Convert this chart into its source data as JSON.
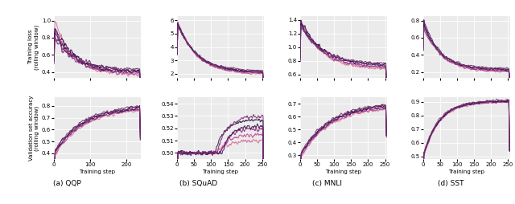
{
  "colors": [
    "#d4779a",
    "#c4509a",
    "#8b3080",
    "#4a1a5a",
    "#3d1550",
    "#7b3575"
  ],
  "subplot_titles": [
    "(a) QQP",
    "(b) SQuAD",
    "(c) MNLI",
    "(d) SST"
  ],
  "ylabel_top": "Training loss\n(rolling window)",
  "ylabel_bottom": "Validation set accuracy\n(rolling window)",
  "xlabel": "Training step",
  "n_series": 6,
  "seed": 12345,
  "qqp_loss_ylim": [
    0.33,
    1.05
  ],
  "qqp_loss_yticks": [
    0.4,
    0.6,
    0.8,
    1.0
  ],
  "qqp_acc_ylim": [
    0.35,
    0.87
  ],
  "qqp_acc_yticks": [
    0.4,
    0.5,
    0.6,
    0.7,
    0.8
  ],
  "qqp_xlim": [
    0,
    240
  ],
  "qqp_xticks": [
    0,
    100,
    200
  ],
  "squad_loss_ylim": [
    1.7,
    6.3
  ],
  "squad_loss_yticks": [
    2,
    3,
    4,
    5,
    6
  ],
  "squad_acc_ylim": [
    0.495,
    0.545
  ],
  "squad_acc_yticks": [
    0.5,
    0.51,
    0.52,
    0.53,
    0.54
  ],
  "squad_xlim": [
    0,
    255
  ],
  "squad_xticks": [
    0,
    50,
    100,
    150,
    200,
    250
  ],
  "mnli_loss_ylim": [
    0.55,
    1.45
  ],
  "mnli_loss_yticks": [
    0.6,
    0.8,
    1.0,
    1.2,
    1.4
  ],
  "mnli_acc_ylim": [
    0.27,
    0.75
  ],
  "mnli_acc_yticks": [
    0.3,
    0.4,
    0.5,
    0.6,
    0.7
  ],
  "mnli_xlim": [
    0,
    255
  ],
  "mnli_xticks": [
    0,
    50,
    100,
    150,
    200,
    250
  ],
  "sst_loss_ylim": [
    0.13,
    0.85
  ],
  "sst_loss_yticks": [
    0.2,
    0.4,
    0.6,
    0.8
  ],
  "sst_acc_ylim": [
    0.48,
    0.93
  ],
  "sst_acc_yticks": [
    0.5,
    0.6,
    0.7,
    0.8,
    0.9
  ],
  "sst_xlim": [
    0,
    255
  ],
  "sst_xticks": [
    0,
    50,
    100,
    150,
    200,
    250
  ],
  "bg_color": "#ebebeb"
}
